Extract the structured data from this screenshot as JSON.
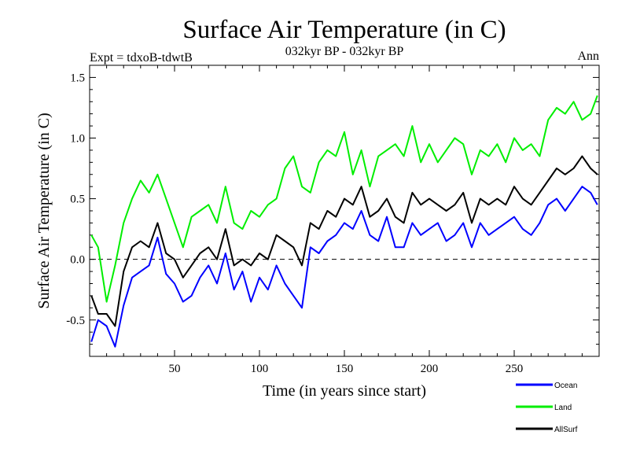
{
  "chart_data": {
    "type": "line",
    "title": "Surface Air Temperature (in C)",
    "subtitle": "032kyr BP - 032kyr BP",
    "expt_label": "Expt = tdxoB-tdwtB",
    "period_label": "Ann",
    "xlabel": "Time (in years since start)",
    "ylabel": "Surface Air Temperature (in C)",
    "xlim": [
      0,
      300
    ],
    "ylim": [
      -0.8,
      1.6
    ],
    "xticks": [
      50,
      100,
      150,
      200,
      250
    ],
    "yticks": [
      -0.5,
      0.0,
      0.5,
      1.0,
      1.5
    ],
    "ytick_labels": [
      "-0.5",
      "0.0",
      "0.5",
      "1.0",
      "1.5"
    ],
    "zero_line": "dashed",
    "legend_position": "bottom-right, outside plot",
    "x": [
      1,
      5,
      10,
      15,
      20,
      25,
      30,
      35,
      40,
      45,
      50,
      55,
      60,
      65,
      70,
      75,
      80,
      85,
      90,
      95,
      100,
      105,
      110,
      115,
      120,
      125,
      130,
      135,
      140,
      145,
      150,
      155,
      160,
      165,
      170,
      175,
      180,
      185,
      190,
      195,
      200,
      205,
      210,
      215,
      220,
      225,
      230,
      235,
      240,
      245,
      250,
      255,
      260,
      265,
      270,
      275,
      280,
      285,
      290,
      295,
      299
    ],
    "series": [
      {
        "name": "Ocean",
        "color": "#0000ff",
        "values": [
          -0.68,
          -0.5,
          -0.55,
          -0.72,
          -0.38,
          -0.15,
          -0.1,
          -0.05,
          0.18,
          -0.12,
          -0.2,
          -0.35,
          -0.3,
          -0.15,
          -0.05,
          -0.2,
          0.05,
          -0.25,
          -0.1,
          -0.35,
          -0.15,
          -0.25,
          -0.05,
          -0.2,
          -0.3,
          -0.4,
          0.1,
          0.05,
          0.15,
          0.2,
          0.3,
          0.25,
          0.4,
          0.2,
          0.15,
          0.35,
          0.1,
          0.1,
          0.3,
          0.2,
          0.25,
          0.3,
          0.15,
          0.2,
          0.3,
          0.1,
          0.3,
          0.2,
          0.25,
          0.3,
          0.35,
          0.25,
          0.2,
          0.3,
          0.45,
          0.5,
          0.4,
          0.5,
          0.6,
          0.55,
          0.45
        ]
      },
      {
        "name": "Land",
        "color": "#00ee00",
        "values": [
          0.2,
          0.1,
          -0.35,
          -0.05,
          0.3,
          0.5,
          0.65,
          0.55,
          0.7,
          0.5,
          0.3,
          0.1,
          0.35,
          0.4,
          0.45,
          0.3,
          0.6,
          0.3,
          0.25,
          0.4,
          0.35,
          0.45,
          0.5,
          0.75,
          0.85,
          0.6,
          0.55,
          0.8,
          0.9,
          0.85,
          1.05,
          0.7,
          0.9,
          0.6,
          0.85,
          0.9,
          0.95,
          0.85,
          1.1,
          0.8,
          0.95,
          0.8,
          0.9,
          1.0,
          0.95,
          0.7,
          0.9,
          0.85,
          0.95,
          0.8,
          1.0,
          0.9,
          0.95,
          0.85,
          1.15,
          1.25,
          1.2,
          1.3,
          1.15,
          1.2,
          1.35
        ]
      },
      {
        "name": "AllSurf",
        "color": "#000000",
        "values": [
          -0.3,
          -0.45,
          -0.45,
          -0.55,
          -0.1,
          0.1,
          0.15,
          0.1,
          0.3,
          0.05,
          0.0,
          -0.15,
          -0.05,
          0.05,
          0.1,
          0.0,
          0.25,
          -0.05,
          0.0,
          -0.05,
          0.05,
          0.0,
          0.2,
          0.15,
          0.1,
          -0.05,
          0.3,
          0.25,
          0.4,
          0.35,
          0.5,
          0.45,
          0.6,
          0.35,
          0.4,
          0.5,
          0.35,
          0.3,
          0.55,
          0.45,
          0.5,
          0.45,
          0.4,
          0.45,
          0.55,
          0.3,
          0.5,
          0.45,
          0.5,
          0.45,
          0.6,
          0.5,
          0.45,
          0.55,
          0.65,
          0.75,
          0.7,
          0.75,
          0.85,
          0.75,
          0.7
        ]
      }
    ]
  }
}
